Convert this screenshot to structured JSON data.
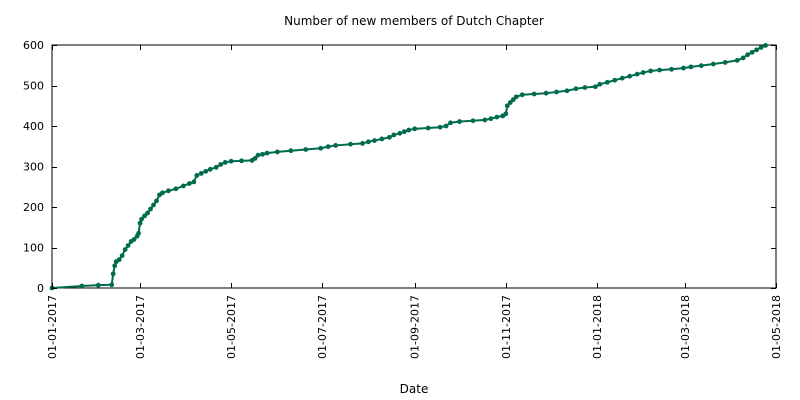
{
  "chart_data": {
    "type": "line",
    "title": "Number of new members of Dutch Chapter",
    "xlabel": "Date",
    "ylabel": "",
    "xlim": [
      "2017-01-01",
      "2018-05-01"
    ],
    "ylim": [
      0,
      600
    ],
    "x_ticks": [
      "01-01-2017",
      "01-03-2017",
      "01-05-2017",
      "01-07-2017",
      "01-09-2017",
      "01-11-2017",
      "01-01-2018",
      "01-03-2018",
      "01-05-2018"
    ],
    "y_ticks": [
      0,
      100,
      200,
      300,
      400,
      500,
      600
    ],
    "grid": false,
    "legend": "none",
    "marker": "circle",
    "series": [
      {
        "color": "#006b4e",
        "points": [
          [
            "2017-01-01",
            0
          ],
          [
            "2017-01-21",
            5
          ],
          [
            "2017-02-01",
            7
          ],
          [
            "2017-02-10",
            8
          ],
          [
            "2017-02-11",
            35
          ],
          [
            "2017-02-12",
            55
          ],
          [
            "2017-02-13",
            65
          ],
          [
            "2017-02-15",
            70
          ],
          [
            "2017-02-17",
            80
          ],
          [
            "2017-02-19",
            95
          ],
          [
            "2017-02-21",
            105
          ],
          [
            "2017-02-23",
            115
          ],
          [
            "2017-02-25",
            120
          ],
          [
            "2017-02-27",
            128
          ],
          [
            "2017-02-28",
            135
          ],
          [
            "2017-03-01",
            160
          ],
          [
            "2017-03-02",
            170
          ],
          [
            "2017-03-04",
            178
          ],
          [
            "2017-03-06",
            185
          ],
          [
            "2017-03-08",
            195
          ],
          [
            "2017-03-10",
            205
          ],
          [
            "2017-03-12",
            215
          ],
          [
            "2017-03-14",
            230
          ],
          [
            "2017-03-16",
            235
          ],
          [
            "2017-03-20",
            240
          ],
          [
            "2017-03-25",
            245
          ],
          [
            "2017-03-30",
            252
          ],
          [
            "2017-04-03",
            258
          ],
          [
            "2017-04-06",
            262
          ],
          [
            "2017-04-08",
            278
          ],
          [
            "2017-04-11",
            283
          ],
          [
            "2017-04-14",
            288
          ],
          [
            "2017-04-17",
            293
          ],
          [
            "2017-04-21",
            298
          ],
          [
            "2017-04-24",
            305
          ],
          [
            "2017-04-27",
            310
          ],
          [
            "2017-05-01",
            313
          ],
          [
            "2017-05-08",
            314
          ],
          [
            "2017-05-15",
            315
          ],
          [
            "2017-05-17",
            320
          ],
          [
            "2017-05-19",
            328
          ],
          [
            "2017-05-22",
            330
          ],
          [
            "2017-05-25",
            333
          ],
          [
            "2017-06-01",
            336
          ],
          [
            "2017-06-10",
            339
          ],
          [
            "2017-06-20",
            342
          ],
          [
            "2017-06-30",
            345
          ],
          [
            "2017-07-05",
            349
          ],
          [
            "2017-07-10",
            352
          ],
          [
            "2017-07-20",
            355
          ],
          [
            "2017-07-28",
            357
          ],
          [
            "2017-08-01",
            361
          ],
          [
            "2017-08-05",
            364
          ],
          [
            "2017-08-10",
            368
          ],
          [
            "2017-08-15",
            372
          ],
          [
            "2017-08-18",
            378
          ],
          [
            "2017-08-22",
            382
          ],
          [
            "2017-08-25",
            386
          ],
          [
            "2017-08-28",
            390
          ],
          [
            "2017-09-01",
            393
          ],
          [
            "2017-09-10",
            395
          ],
          [
            "2017-09-18",
            397
          ],
          [
            "2017-09-22",
            400
          ],
          [
            "2017-09-25",
            408
          ],
          [
            "2017-10-01",
            411
          ],
          [
            "2017-10-10",
            413
          ],
          [
            "2017-10-18",
            415
          ],
          [
            "2017-10-22",
            418
          ],
          [
            "2017-10-26",
            422
          ],
          [
            "2017-10-30",
            425
          ],
          [
            "2017-11-01",
            430
          ],
          [
            "2017-11-02",
            450
          ],
          [
            "2017-11-04",
            458
          ],
          [
            "2017-11-06",
            465
          ],
          [
            "2017-11-08",
            472
          ],
          [
            "2017-11-12",
            477
          ],
          [
            "2017-11-20",
            479
          ],
          [
            "2017-11-28",
            481
          ],
          [
            "2017-12-05",
            484
          ],
          [
            "2017-12-12",
            487
          ],
          [
            "2017-12-18",
            492
          ],
          [
            "2017-12-24",
            495
          ],
          [
            "2017-12-31",
            497
          ],
          [
            "2018-01-03",
            503
          ],
          [
            "2018-01-08",
            508
          ],
          [
            "2018-01-13",
            513
          ],
          [
            "2018-01-18",
            518
          ],
          [
            "2018-01-23",
            523
          ],
          [
            "2018-01-28",
            528
          ],
          [
            "2018-02-01",
            532
          ],
          [
            "2018-02-06",
            536
          ],
          [
            "2018-02-12",
            538
          ],
          [
            "2018-02-20",
            540
          ],
          [
            "2018-02-28",
            543
          ],
          [
            "2018-03-05",
            546
          ],
          [
            "2018-03-12",
            549
          ],
          [
            "2018-03-20",
            553
          ],
          [
            "2018-03-28",
            557
          ],
          [
            "2018-04-05",
            562
          ],
          [
            "2018-04-09",
            568
          ],
          [
            "2018-04-12",
            576
          ],
          [
            "2018-04-15",
            582
          ],
          [
            "2018-04-18",
            588
          ],
          [
            "2018-04-21",
            594
          ],
          [
            "2018-04-24",
            599
          ]
        ]
      }
    ]
  }
}
